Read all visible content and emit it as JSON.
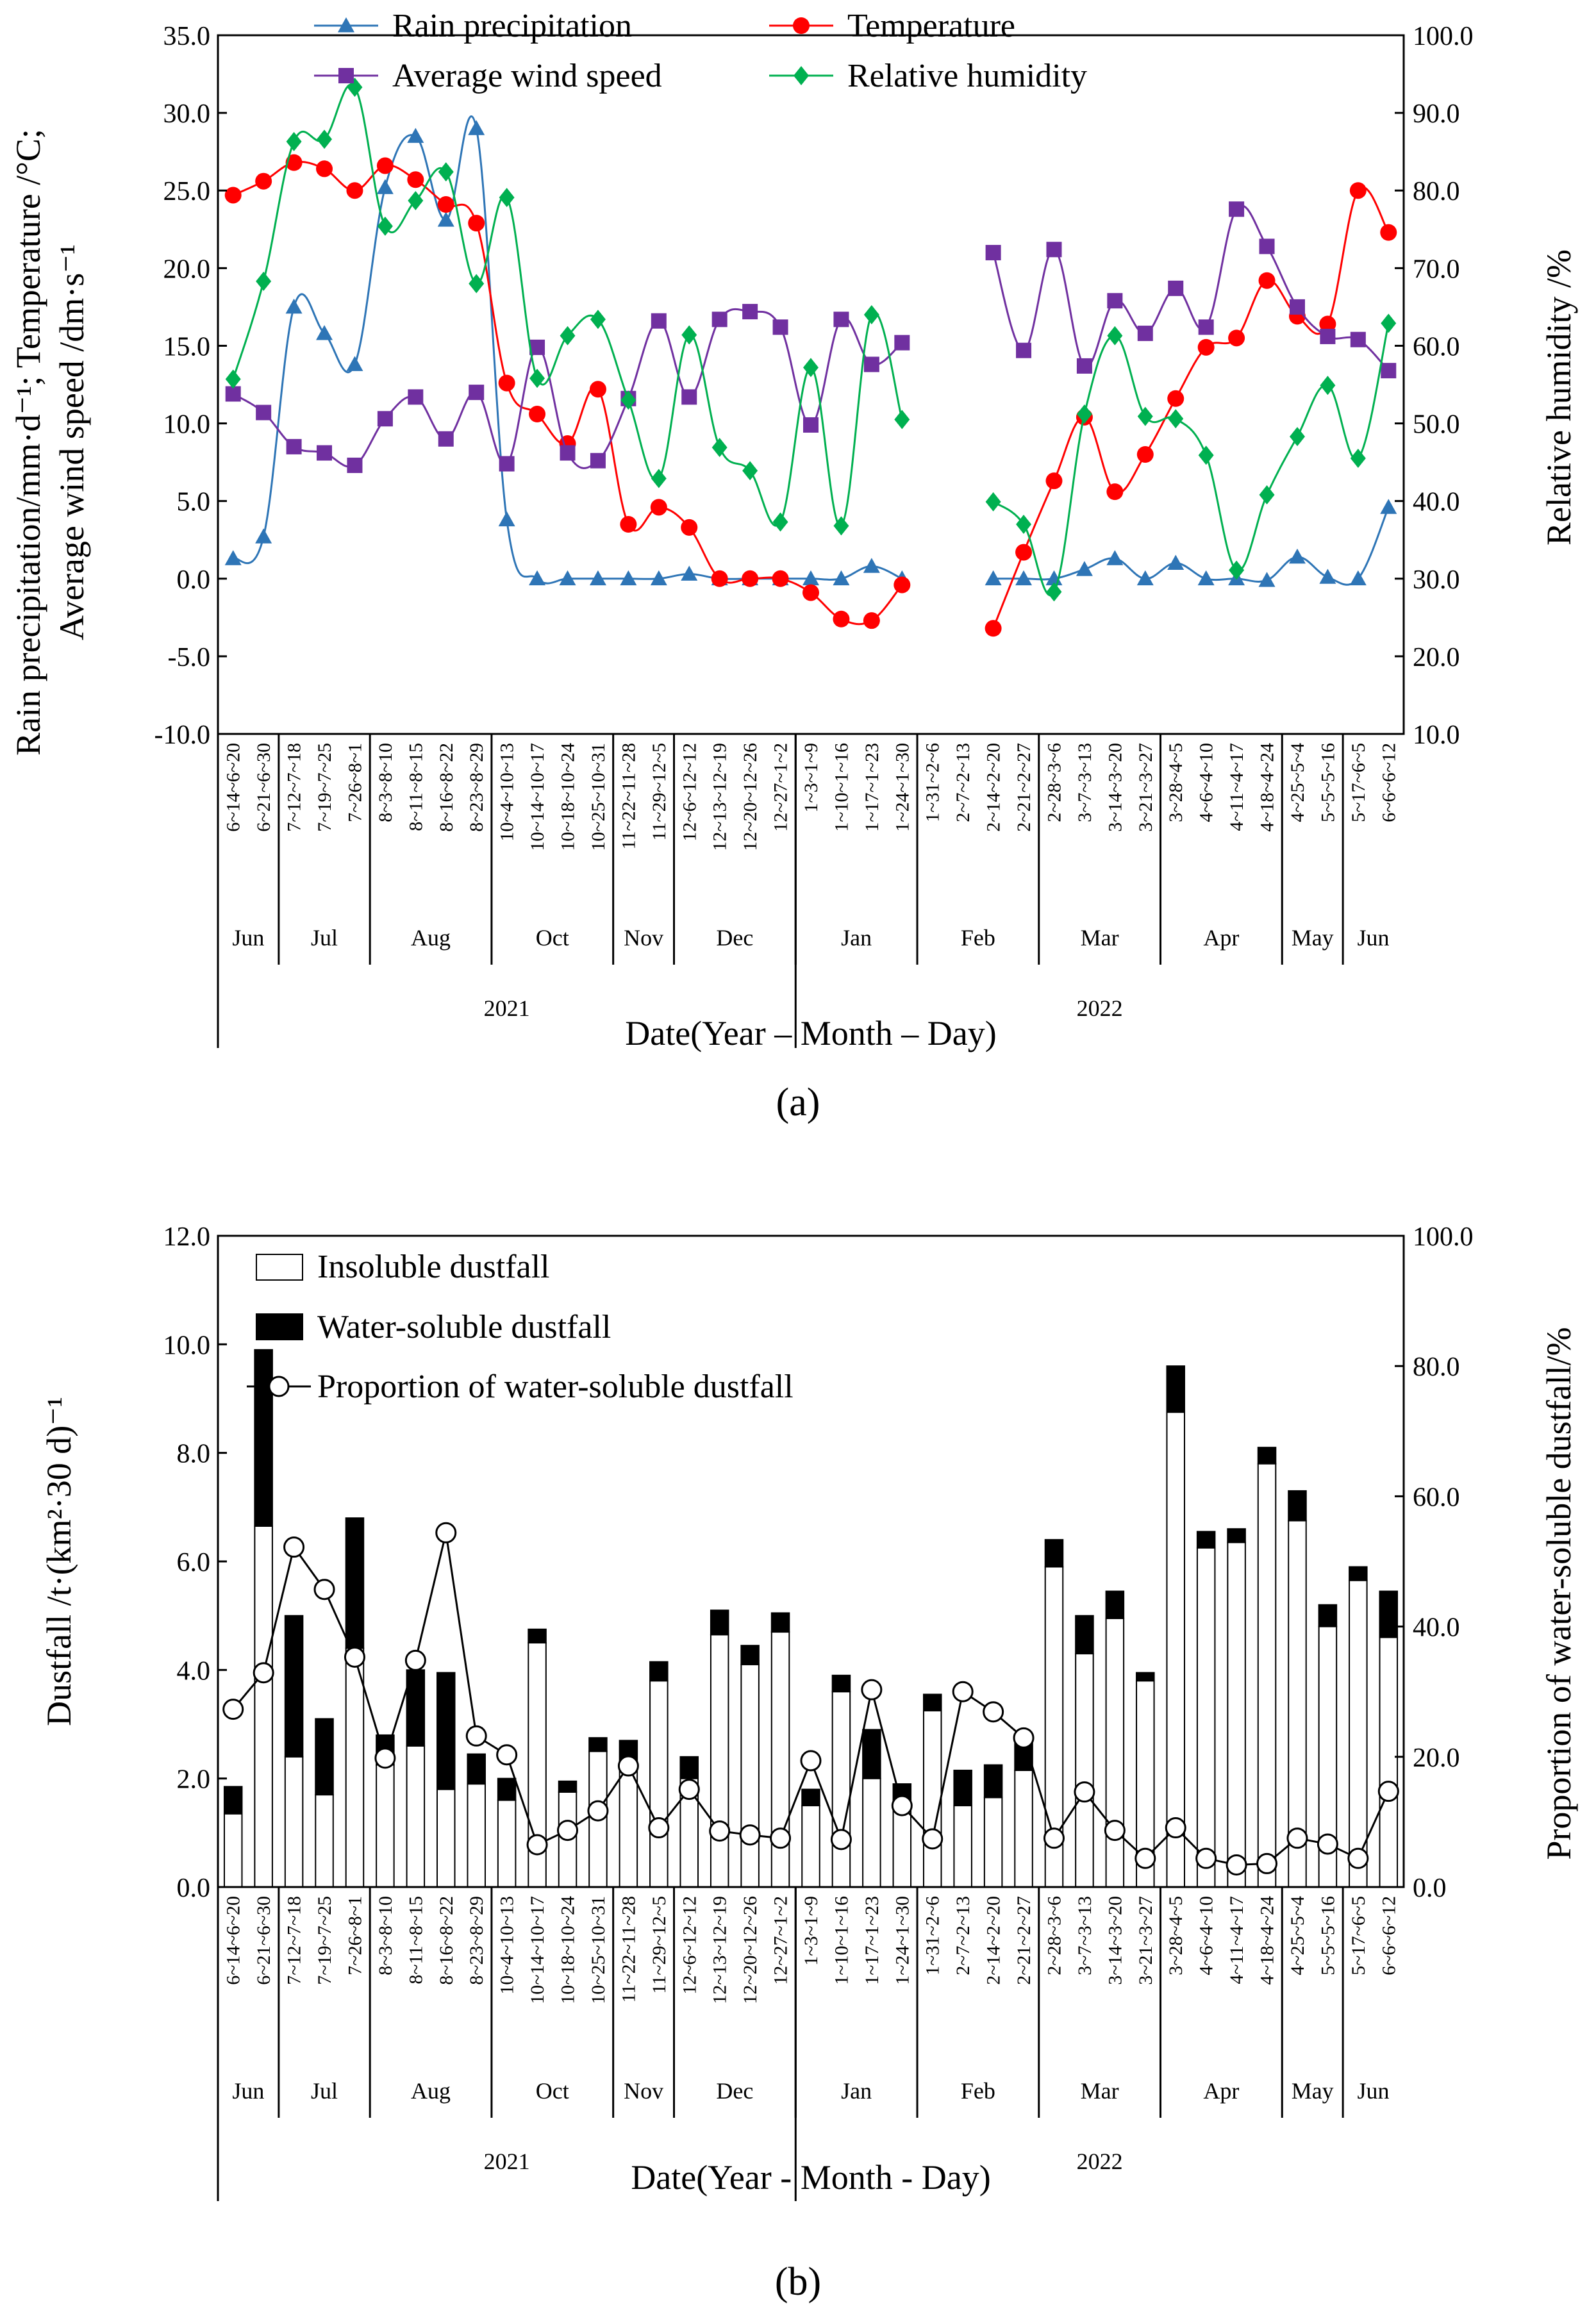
{
  "chart_data": [
    {
      "type": "line",
      "panel_label": "(a)",
      "categories": [
        "6~14~6~20",
        "6~21~6~30",
        "7~12~7~18",
        "7~19~7~25",
        "7~26~8~1",
        "8~3~8~10",
        "8~11~8~15",
        "8~16~8~22",
        "8~23~8~29",
        "10~4~10~13",
        "10~14~10~17",
        "10~18~10~24",
        "10~25~10~31",
        "11~22~11~28",
        "11~29~12~5",
        "12~6~12~12",
        "12~13~12~19",
        "12~20~12~26",
        "12~27~1~2",
        "1~3~1~9",
        "1~10~1~16",
        "1~17~1~23",
        "1~24~1~30",
        "1~31~2~6",
        "2~7~2~13",
        "2~14~2~20",
        "2~21~2~27",
        "2~28~3~6",
        "3~7~3~13",
        "3~14~3~20",
        "3~21~3~27",
        "3~28~4~5",
        "4~6~4~10",
        "4~11~4~17",
        "4~18~4~24",
        "4~25~5~4",
        "5~5~5~16",
        "5~17~6~5",
        "6~6~6~12"
      ],
      "month_groups": [
        {
          "label": "Jun",
          "start": 0,
          "end": 1
        },
        {
          "label": "Jul",
          "start": 2,
          "end": 4
        },
        {
          "label": "Aug",
          "start": 5,
          "end": 8
        },
        {
          "label": "Oct",
          "start": 9,
          "end": 12
        },
        {
          "label": "Nov",
          "start": 13,
          "end": 14
        },
        {
          "label": "Dec",
          "start": 15,
          "end": 18
        },
        {
          "label": "Jan",
          "start": 19,
          "end": 22
        },
        {
          "label": "Feb",
          "start": 23,
          "end": 26
        },
        {
          "label": "Mar",
          "start": 27,
          "end": 30
        },
        {
          "label": "Apr",
          "start": 31,
          "end": 34
        },
        {
          "label": "May",
          "start": 35,
          "end": 36
        },
        {
          "label": "Jun",
          "start": 37,
          "end": 38
        }
      ],
      "year_groups": [
        {
          "label": "2021",
          "start": 0,
          "end": 18
        },
        {
          "label": "2022",
          "start": 19,
          "end": 38
        }
      ],
      "xlabel": "Date(Year – Month – Day)",
      "ylabel_left": [
        "Rain precipitation/mm·d⁻¹;   Temperature /°C;",
        "Average wind speed /dm·s⁻¹"
      ],
      "ylabel_right": "Relative humidity /%",
      "ylim_left": [
        -10,
        35
      ],
      "ylim_right": [
        10,
        100
      ],
      "left_ticks": [
        "-10.0",
        "-5.0",
        "0.0",
        "5.0",
        "10.0",
        "15.0",
        "20.0",
        "25.0",
        "30.0",
        "35.0"
      ],
      "right_ticks": [
        "10.0",
        "20.0",
        "30.0",
        "40.0",
        "50.0",
        "60.0",
        "70.0",
        "80.0",
        "90.0",
        "100.0"
      ],
      "series": [
        {
          "name": "Rain precipitation",
          "axis": "left",
          "color": "#2E75B6",
          "marker": "triangle",
          "values": [
            1.3,
            2.7,
            17.5,
            15.8,
            13.8,
            25.2,
            28.5,
            23.1,
            29.0,
            3.8,
            0.0,
            0.0,
            0.0,
            0.0,
            0.0,
            0.3,
            0.0,
            0.0,
            0.0,
            0.0,
            0.0,
            0.8,
            0.0,
            null,
            null,
            0.0,
            0.0,
            0.0,
            0.6,
            1.3,
            0.0,
            1.0,
            0.0,
            0.0,
            -0.1,
            1.4,
            0.1,
            0.0,
            4.6
          ]
        },
        {
          "name": "Temperature",
          "axis": "left",
          "color": "#FF0000",
          "marker": "circle",
          "values": [
            24.7,
            25.6,
            26.8,
            26.4,
            25.0,
            26.6,
            25.7,
            24.1,
            22.9,
            12.6,
            10.6,
            8.7,
            12.2,
            3.5,
            4.6,
            3.3,
            0.0,
            0.0,
            0.0,
            -0.9,
            -2.6,
            -2.7,
            -0.4,
            null,
            null,
            -3.2,
            1.7,
            6.3,
            10.4,
            5.6,
            8.0,
            11.6,
            14.9,
            15.5,
            19.2,
            16.9,
            16.4,
            25.0,
            22.3
          ]
        },
        {
          "name": "Average wind speed",
          "axis": "left",
          "color": "#7030A0",
          "marker": "square",
          "values": [
            11.9,
            10.7,
            8.5,
            8.1,
            7.3,
            10.3,
            11.7,
            9.0,
            12.0,
            7.4,
            14.9,
            8.1,
            7.6,
            11.6,
            16.6,
            11.7,
            16.7,
            17.2,
            16.2,
            9.9,
            16.7,
            13.8,
            15.2,
            null,
            null,
            21.0,
            14.7,
            21.2,
            13.7,
            17.9,
            15.8,
            18.7,
            16.2,
            23.8,
            21.4,
            17.5,
            15.6,
            15.4,
            13.4
          ]
        },
        {
          "name": "Relative humidity",
          "axis": "right",
          "color": "#00B050",
          "marker": "diamond",
          "values": [
            55.7,
            68.3,
            86.3,
            86.6,
            93.3,
            75.4,
            78.7,
            82.4,
            68.0,
            79.1,
            55.8,
            61.3,
            63.4,
            53.0,
            42.9,
            61.4,
            46.9,
            43.9,
            37.3,
            57.2,
            36.8,
            64.0,
            50.5,
            null,
            null,
            39.9,
            37.0,
            28.3,
            51.2,
            61.3,
            50.9,
            50.6,
            45.9,
            31.1,
            40.8,
            48.3,
            54.9,
            45.5,
            62.9
          ]
        }
      ]
    },
    {
      "type": "bar",
      "panel_label": "(b)",
      "categories": [
        "6~14~6~20",
        "6~21~6~30",
        "7~12~7~18",
        "7~19~7~25",
        "7~26~8~1",
        "8~3~8~10",
        "8~11~8~15",
        "8~16~8~22",
        "8~23~8~29",
        "10~4~10~13",
        "10~14~10~17",
        "10~18~10~24",
        "10~25~10~31",
        "11~22~11~28",
        "11~29~12~5",
        "12~6~12~12",
        "12~13~12~19",
        "12~20~12~26",
        "12~27~1~2",
        "1~3~1~9",
        "1~10~1~16",
        "1~17~1~23",
        "1~24~1~30",
        "1~31~2~6",
        "2~7~2~13",
        "2~14~2~20",
        "2~21~2~27",
        "2~28~3~6",
        "3~7~3~13",
        "3~14~3~20",
        "3~21~3~27",
        "3~28~4~5",
        "4~6~4~10",
        "4~11~4~17",
        "4~18~4~24",
        "4~25~5~4",
        "5~5~5~16",
        "5~17~6~5",
        "6~6~6~12"
      ],
      "month_groups": [
        {
          "label": "Jun",
          "start": 0,
          "end": 1
        },
        {
          "label": "Jul",
          "start": 2,
          "end": 4
        },
        {
          "label": "Aug",
          "start": 5,
          "end": 8
        },
        {
          "label": "Oct",
          "start": 9,
          "end": 12
        },
        {
          "label": "Nov",
          "start": 13,
          "end": 14
        },
        {
          "label": "Dec",
          "start": 15,
          "end": 18
        },
        {
          "label": "Jan",
          "start": 19,
          "end": 22
        },
        {
          "label": "Feb",
          "start": 23,
          "end": 26
        },
        {
          "label": "Mar",
          "start": 27,
          "end": 30
        },
        {
          "label": "Apr",
          "start": 31,
          "end": 34
        },
        {
          "label": "May",
          "start": 35,
          "end": 36
        },
        {
          "label": "Jun",
          "start": 37,
          "end": 38
        }
      ],
      "year_groups": [
        {
          "label": "2021",
          "start": 0,
          "end": 18
        },
        {
          "label": "2022",
          "start": 19,
          "end": 38
        }
      ],
      "xlabel": "Date(Year - Month - Day)",
      "ylabel_left": "Dustfall /t·(km²·30 d)⁻¹",
      "ylabel_right": "Proportion of water-soluble dustfall/%",
      "ylim_left": [
        0,
        12
      ],
      "ylim_right": [
        0,
        100
      ],
      "left_ticks": [
        "0.0",
        "2.0",
        "4.0",
        "6.0",
        "8.0",
        "10.0",
        "12.0"
      ],
      "right_ticks": [
        "0.0",
        "20.0",
        "40.0",
        "60.0",
        "80.0",
        "100.0"
      ],
      "series": [
        {
          "name": "Insoluble dustfall",
          "type": "bar",
          "color": "#FFFFFF",
          "values": [
            1.35,
            6.65,
            2.4,
            1.7,
            4.4,
            2.25,
            2.6,
            1.8,
            1.9,
            1.6,
            4.5,
            1.75,
            2.5,
            2.25,
            3.8,
            2.0,
            4.65,
            4.1,
            4.7,
            1.5,
            3.6,
            2.0,
            1.6,
            3.25,
            1.5,
            1.65,
            2.15,
            5.9,
            4.3,
            4.95,
            3.8,
            8.75,
            6.25,
            6.35,
            7.8,
            6.75,
            4.8,
            5.65,
            4.6
          ]
        },
        {
          "name": "Water-soluble dustfall",
          "type": "bar",
          "color": "#000000",
          "values": [
            0.5,
            3.25,
            2.6,
            1.4,
            2.4,
            0.55,
            1.4,
            2.15,
            0.55,
            0.4,
            0.25,
            0.2,
            0.25,
            0.45,
            0.35,
            0.4,
            0.45,
            0.35,
            0.35,
            0.3,
            0.3,
            0.9,
            0.3,
            0.3,
            0.65,
            0.6,
            0.65,
            0.5,
            0.7,
            0.5,
            0.15,
            0.85,
            0.3,
            0.25,
            0.3,
            0.55,
            0.4,
            0.25,
            0.85
          ]
        },
        {
          "name": "Proportion of water-soluble dustfall",
          "type": "line",
          "axis": "right",
          "color": "#000000",
          "marker": "open-circle",
          "values": [
            27.3,
            32.9,
            52.2,
            45.7,
            35.3,
            19.8,
            34.8,
            54.4,
            23.2,
            20.3,
            6.5,
            8.7,
            11.7,
            18.6,
            9.1,
            15.0,
            8.6,
            8.0,
            7.5,
            19.4,
            7.3,
            30.3,
            12.5,
            7.4,
            30.0,
            26.9,
            22.9,
            7.5,
            14.6,
            8.7,
            4.4,
            9.1,
            4.4,
            3.4,
            3.6,
            7.5,
            6.6,
            4.4,
            14.7
          ]
        }
      ]
    }
  ]
}
